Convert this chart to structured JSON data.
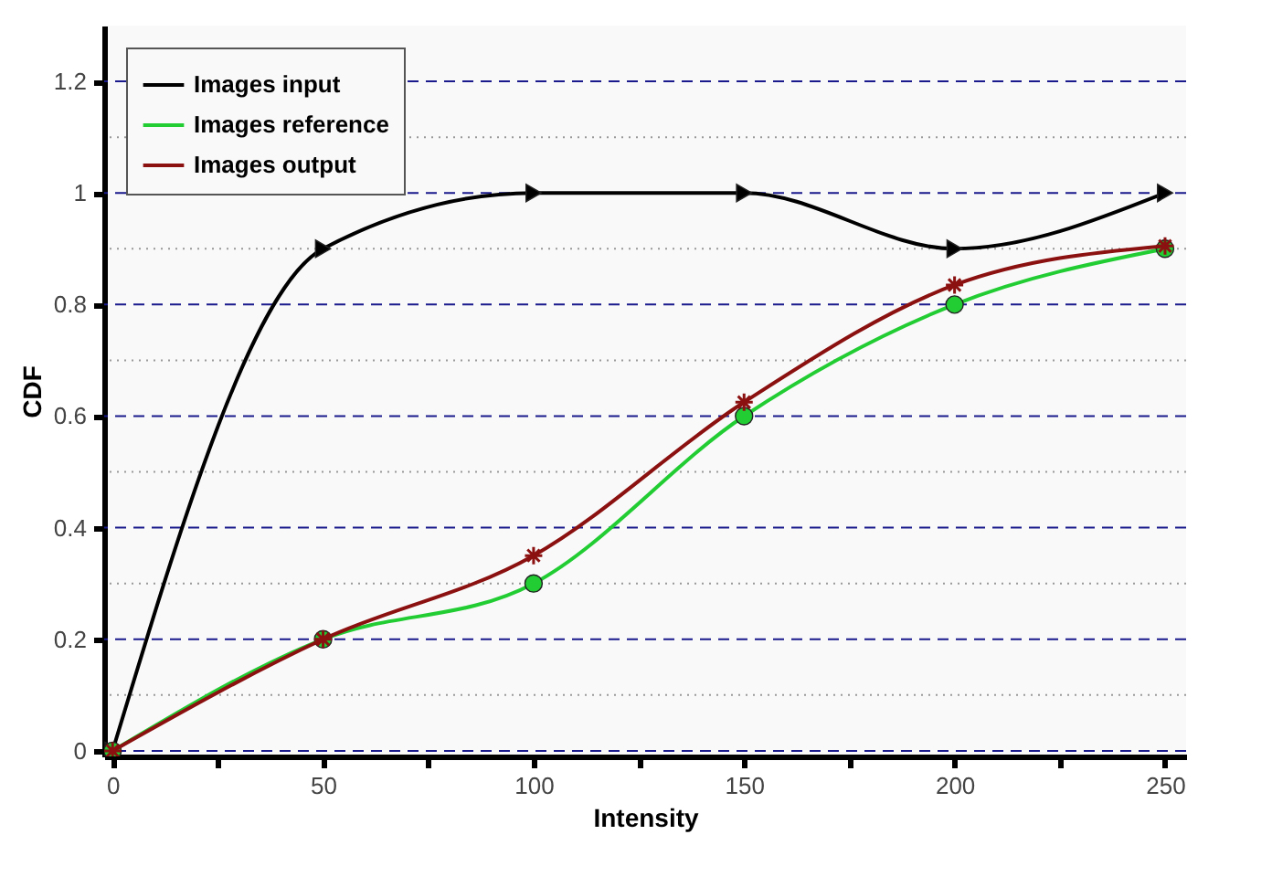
{
  "chart_data": {
    "type": "line",
    "xlabel": "Intensity",
    "ylabel": "CDF",
    "x": [
      0,
      50,
      100,
      150,
      200,
      250
    ],
    "series": [
      {
        "name": "Images input",
        "color": "#000000",
        "marker": "triangle",
        "values": [
          0,
          0.9,
          1.0,
          1.0,
          0.9,
          1.0
        ]
      },
      {
        "name": "Images reference",
        "color": "#22cc33",
        "marker": "circle",
        "values": [
          0,
          0.2,
          0.3,
          0.6,
          0.8,
          0.9
        ]
      },
      {
        "name": "Images output",
        "color": "#8b1010",
        "marker": "cross",
        "values": [
          0,
          0.2,
          0.35,
          0.625,
          0.835,
          0.905
        ]
      }
    ],
    "xlim": [
      -2,
      255
    ],
    "ylim": [
      -0.01,
      1.3
    ],
    "xticks": [
      0,
      {
        "value": 25,
        "label": null
      },
      50,
      {
        "value": 75,
        "label": null
      },
      100,
      {
        "value": 125,
        "label": null
      },
      150,
      {
        "value": 175,
        "label": null
      },
      200,
      {
        "value": 225,
        "label": null
      },
      250
    ],
    "yticks": [
      0,
      {
        "value": 0.1,
        "label": null
      },
      0.2,
      {
        "value": 0.3,
        "label": null
      },
      0.4,
      {
        "value": 0.5,
        "label": null
      },
      0.6,
      {
        "value": 0.7,
        "label": null
      },
      0.8,
      {
        "value": 0.9,
        "label": null
      },
      1,
      {
        "value": 1.1,
        "label": null
      },
      1.2
    ],
    "grid": "y",
    "legend": "top left",
    "line_style": "solid"
  }
}
